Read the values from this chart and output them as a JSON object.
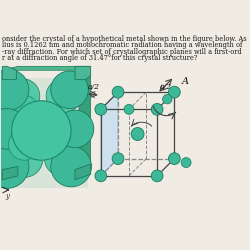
{
  "bg_color": "#f0ece4",
  "text_color": "#1a1a1a",
  "text_lines": [
    "onsider the crystal of a hypothetical metal shown in the figure below. As",
    "lius is 0.1262 nm and monochromatic radiation having a wavelength of",
    "-ray diffraction. For which set of crystallographic planes will a first-ord",
    "r at a diffraction angle of 31.47°for this crystal structure?"
  ],
  "text_fontsize": 4.8,
  "atom_color": "#3db899",
  "atom_edge_color": "#1a7a5a",
  "atom_dark": "#2a9a7a",
  "plane_color": "#b8d8f0",
  "plane_alpha": 0.6,
  "line_color": "#444444",
  "dashed_color": "#888888",
  "label_color": "#111111",
  "arrow_color": "#333333"
}
